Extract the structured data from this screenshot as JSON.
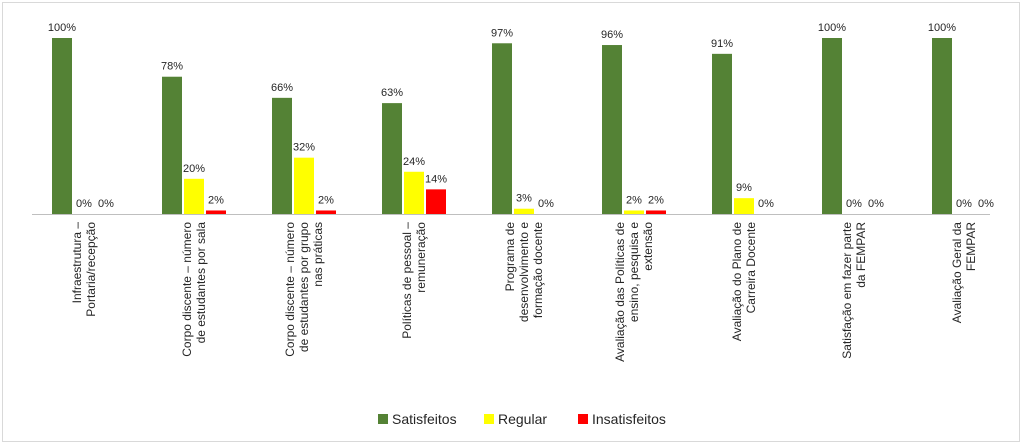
{
  "chart_data": {
    "type": "bar",
    "categories": [
      [
        "Infraestrutura –",
        "Portaria/recepção"
      ],
      [
        "Corpo discente – número",
        "de estudantes por sala"
      ],
      [
        "Corpo discente – número",
        "de estudantes por grupo",
        "nas práticas"
      ],
      [
        "Políticas de pessoal –",
        "remuneração"
      ],
      [
        "Programa de",
        "desenvolvimento e",
        "formação docente"
      ],
      [
        "Avaliação das Políticas de",
        "ensino, pesquisa e",
        "extensão"
      ],
      [
        "Avaliação do Plano de",
        "Carreira Docente"
      ],
      [
        "Satisfação em fazer parte",
        "da FEMPAR"
      ],
      [
        "Avaliação Geral da",
        "FEMPAR"
      ]
    ],
    "series": [
      {
        "name": "Satisfeitos",
        "color": "#548235",
        "values": [
          100,
          78,
          66,
          63,
          97,
          96,
          91,
          100,
          100
        ]
      },
      {
        "name": "Regular",
        "color": "#ffff00",
        "values": [
          0,
          20,
          32,
          24,
          3,
          2,
          9,
          0,
          0
        ]
      },
      {
        "name": "Insatisfeitos",
        "color": "#ff0000",
        "values": [
          0,
          2,
          2,
          14,
          0,
          2,
          0,
          0,
          0
        ]
      }
    ],
    "data_labels": [
      [
        "100%",
        "78%",
        "66%",
        "63%",
        "97%",
        "96%",
        "91%",
        "100%",
        "100%"
      ],
      [
        "0%",
        "20%",
        "32%",
        "24%",
        "3%",
        "2%",
        "9%",
        "0%",
        "0%"
      ],
      [
        "0%",
        "2%",
        "2%",
        "14%",
        "0%",
        "2%",
        "0%",
        "0%",
        "0%"
      ]
    ],
    "ylim": [
      0,
      100
    ],
    "legend": "bottom",
    "grid": false
  }
}
